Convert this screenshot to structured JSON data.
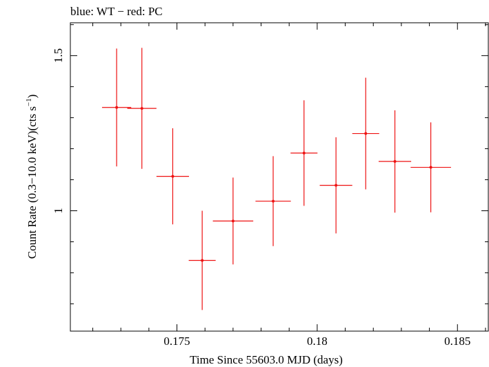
{
  "chart_data": {
    "type": "scatter",
    "title": "blue: WT − red: PC",
    "xlabel": "Time Since 55603.0 MJD (days)",
    "ylabel_main": "Count Rate (0.3−10.0 keV)(cts s",
    "ylabel_sup": "−1",
    "ylabel_end": ")",
    "xlim": [
      0.1712,
      0.1861
    ],
    "ylim": [
      0.612,
      1.606
    ],
    "x_ticks": [
      {
        "value": 0.175,
        "label": "0.175"
      },
      {
        "value": 0.18,
        "label": "0.18"
      },
      {
        "value": 0.185,
        "label": "0.185"
      }
    ],
    "y_ticks": [
      {
        "value": 1.0,
        "label": "1"
      },
      {
        "value": 1.5,
        "label": "1.5"
      }
    ],
    "x_minor_step": 0.001,
    "y_minor_step": 0.1,
    "grid": false,
    "series": [
      {
        "color": "#ee1111",
        "points": [
          {
            "x": 0.17285,
            "xerr": 0.00052,
            "y": 1.333,
            "yerr": 0.19
          },
          {
            "x": 0.17375,
            "xerr": 0.00052,
            "y": 1.33,
            "yerr": 0.195
          },
          {
            "x": 0.17485,
            "xerr": 0.00058,
            "y": 1.111,
            "yerr": 0.155
          },
          {
            "x": 0.1759,
            "xerr": 0.00048,
            "y": 0.84,
            "yerr": 0.16
          },
          {
            "x": 0.177,
            "xerr": 0.00072,
            "y": 0.967,
            "yerr": 0.14
          },
          {
            "x": 0.17843,
            "xerr": 0.00063,
            "y": 1.031,
            "yerr": 0.145
          },
          {
            "x": 0.17953,
            "xerr": 0.00048,
            "y": 1.186,
            "yerr": 0.17
          },
          {
            "x": 0.18067,
            "xerr": 0.00058,
            "y": 1.082,
            "yerr": 0.155
          },
          {
            "x": 0.18173,
            "xerr": 0.00048,
            "y": 1.249,
            "yerr": 0.18
          },
          {
            "x": 0.18277,
            "xerr": 0.00058,
            "y": 1.159,
            "yerr": 0.165
          },
          {
            "x": 0.18405,
            "xerr": 0.00072,
            "y": 1.14,
            "yerr": 0.145
          }
        ]
      }
    ]
  }
}
